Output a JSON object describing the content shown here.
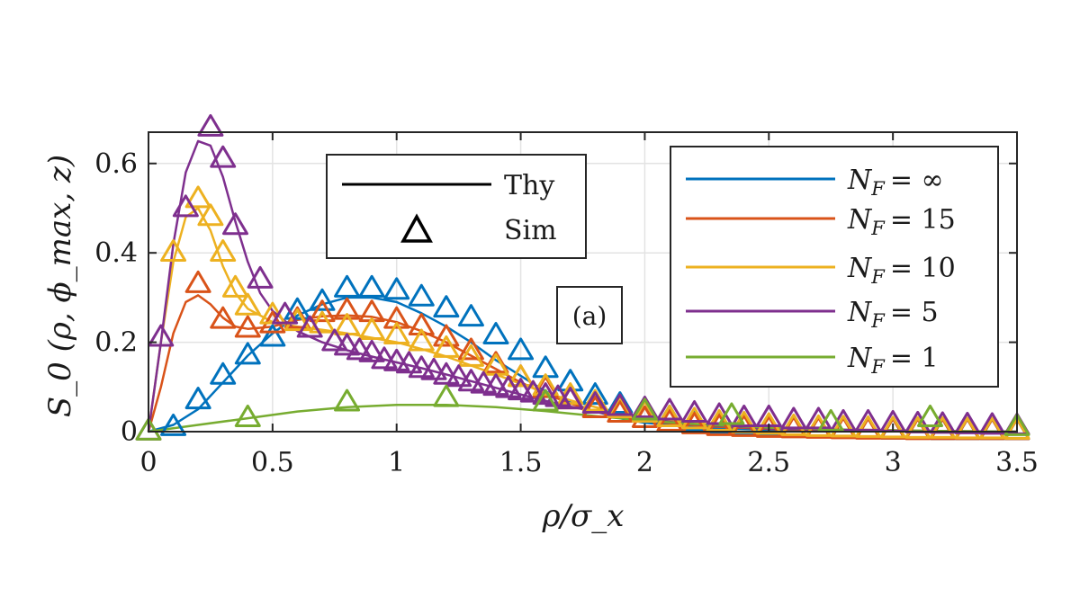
{
  "chart_data": {
    "type": "line",
    "xlabel": "ρ/σ_x",
    "ylabel": "S_0 (ρ, ϕ_max, z)",
    "xlim": [
      0,
      3.5
    ],
    "ylim": [
      0,
      0.67
    ],
    "xticks": [
      0,
      0.5,
      1,
      1.5,
      2,
      2.5,
      3,
      3.5
    ],
    "xtick_labels": [
      "0",
      "0.5",
      "1",
      "1.5",
      "2",
      "2.5",
      "3",
      "3.5"
    ],
    "yticks": [
      0,
      0.2,
      0.4,
      0.6
    ],
    "ytick_labels": [
      "0",
      "0.2",
      "0.4",
      "0.6"
    ],
    "grid": true,
    "panel_label": "(a)",
    "style_legend": {
      "placement": "upper-center",
      "entries": [
        {
          "label": "Thy",
          "style": "line"
        },
        {
          "label": "Sim",
          "style": "triangle"
        }
      ]
    },
    "legend": {
      "placement": "top-right"
    },
    "series": [
      {
        "name": "N_F = ∞",
        "label_prefix": "N",
        "label_sub": "F",
        "label_value": "= ∞",
        "color": "#0072BD",
        "x": [
          0,
          0.1,
          0.2,
          0.3,
          0.4,
          0.5,
          0.6,
          0.7,
          0.8,
          0.9,
          1.0,
          1.1,
          1.2,
          1.3,
          1.4,
          1.5,
          1.6,
          1.7,
          1.8,
          1.9,
          2.0,
          2.25,
          2.5,
          2.75,
          3.0,
          3.25,
          3.5
        ],
        "y": [
          0,
          0.015,
          0.05,
          0.11,
          0.17,
          0.22,
          0.26,
          0.285,
          0.3,
          0.3,
          0.29,
          0.265,
          0.235,
          0.2,
          0.16,
          0.125,
          0.09,
          0.065,
          0.045,
          0.03,
          0.02,
          0.008,
          0.004,
          0.002,
          0.001,
          0.0,
          0.0
        ],
        "sim_x": [
          0.1,
          0.2,
          0.3,
          0.4,
          0.5,
          0.6,
          0.7,
          0.8,
          0.9,
          1.0,
          1.1,
          1.2,
          1.3,
          1.4,
          1.5,
          1.6,
          1.7,
          1.8,
          1.9,
          2.0,
          2.1,
          2.2,
          2.3,
          2.4,
          2.5,
          2.6,
          2.7,
          2.8,
          2.9,
          3.0,
          3.1,
          3.2,
          3.3,
          3.4,
          3.5
        ],
        "sim_y": [
          0.01,
          0.07,
          0.125,
          0.17,
          0.21,
          0.27,
          0.29,
          0.32,
          0.32,
          0.315,
          0.3,
          0.275,
          0.255,
          0.215,
          0.18,
          0.14,
          0.11,
          0.08,
          0.06,
          0.04,
          0.03,
          0.02,
          0.015,
          0.01,
          0.008,
          0.006,
          0.005,
          0.004,
          0.003,
          0.002,
          0.002,
          0.001,
          0.001,
          0.001,
          0.001
        ]
      },
      {
        "name": "N_F = 15",
        "label_prefix": "N",
        "label_sub": "F",
        "label_value": "= 15",
        "color": "#D95319",
        "x": [
          0,
          0.05,
          0.1,
          0.15,
          0.2,
          0.25,
          0.3,
          0.35,
          0.4,
          0.5,
          0.6,
          0.7,
          0.8,
          0.9,
          1.0,
          1.1,
          1.2,
          1.3,
          1.4,
          1.5,
          1.6,
          1.7,
          1.8,
          1.9,
          2.0,
          2.25,
          2.5,
          2.75,
          3.0,
          3.25,
          3.5
        ],
        "y": [
          0,
          0.1,
          0.22,
          0.29,
          0.305,
          0.285,
          0.255,
          0.235,
          0.23,
          0.235,
          0.25,
          0.258,
          0.26,
          0.257,
          0.245,
          0.225,
          0.2,
          0.17,
          0.14,
          0.11,
          0.085,
          0.063,
          0.045,
          0.033,
          0.024,
          0.012,
          0.006,
          0.003,
          0.001,
          0.0,
          0.0
        ],
        "sim_x": [
          0.2,
          0.3,
          0.4,
          0.5,
          0.6,
          0.7,
          0.8,
          0.9,
          1.0,
          1.1,
          1.2,
          1.3,
          1.4,
          1.5,
          1.6,
          1.7,
          1.8,
          1.9,
          2.0,
          2.1,
          2.2,
          2.3,
          2.4,
          2.5,
          2.6,
          2.7,
          2.8,
          2.9,
          3.0,
          3.1,
          3.2,
          3.3,
          3.4,
          3.5
        ],
        "sim_y": [
          0.33,
          0.25,
          0.23,
          0.24,
          0.25,
          0.265,
          0.27,
          0.265,
          0.25,
          0.235,
          0.21,
          0.18,
          0.15,
          0.12,
          0.095,
          0.07,
          0.05,
          0.04,
          0.028,
          0.02,
          0.014,
          0.01,
          0.008,
          0.006,
          0.005,
          0.004,
          0.003,
          0.002,
          0.002,
          0.001,
          0.001,
          0.001,
          0.001,
          0.001
        ]
      },
      {
        "name": "N_F = 10",
        "label_prefix": "N",
        "label_sub": "F",
        "label_value": "= 10",
        "color": "#EDB120",
        "x": [
          0,
          0.05,
          0.1,
          0.15,
          0.2,
          0.25,
          0.3,
          0.35,
          0.4,
          0.5,
          0.6,
          0.7,
          0.8,
          0.9,
          1.0,
          1.1,
          1.2,
          1.3,
          1.4,
          1.5,
          1.6,
          1.7,
          1.8,
          1.9,
          2.0,
          2.25,
          2.5,
          2.75,
          3.0,
          3.25,
          3.5
        ],
        "y": [
          0,
          0.2,
          0.38,
          0.48,
          0.5,
          0.45,
          0.37,
          0.31,
          0.275,
          0.245,
          0.235,
          0.228,
          0.22,
          0.21,
          0.2,
          0.185,
          0.168,
          0.148,
          0.128,
          0.107,
          0.088,
          0.07,
          0.055,
          0.042,
          0.032,
          0.017,
          0.009,
          0.005,
          0.003,
          0.001,
          0.0
        ],
        "sim_x": [
          0.1,
          0.2,
          0.25,
          0.3,
          0.35,
          0.4,
          0.5,
          0.6,
          0.7,
          0.8,
          0.9,
          1.0,
          1.1,
          1.2,
          1.3,
          1.4,
          1.5,
          1.6,
          1.7,
          1.8,
          1.9,
          2.0,
          2.1,
          2.2,
          2.3,
          2.4,
          2.5,
          2.6,
          2.7,
          2.8,
          2.9,
          3.0,
          3.1,
          3.2,
          3.3,
          3.4,
          3.5
        ],
        "sim_y": [
          0.4,
          0.52,
          0.48,
          0.4,
          0.32,
          0.28,
          0.26,
          0.245,
          0.24,
          0.235,
          0.225,
          0.215,
          0.2,
          0.185,
          0.165,
          0.145,
          0.12,
          0.1,
          0.08,
          0.065,
          0.05,
          0.04,
          0.03,
          0.025,
          0.02,
          0.016,
          0.013,
          0.01,
          0.008,
          0.007,
          0.006,
          0.005,
          0.004,
          0.004,
          0.003,
          0.003,
          0.002
        ]
      },
      {
        "name": "N_F = 5",
        "label_prefix": "N",
        "label_sub": "F",
        "label_value": "= 5",
        "color": "#7E2F8E",
        "x": [
          0,
          0.05,
          0.1,
          0.15,
          0.2,
          0.25,
          0.3,
          0.35,
          0.4,
          0.45,
          0.5,
          0.6,
          0.7,
          0.8,
          0.9,
          1.0,
          1.1,
          1.2,
          1.3,
          1.4,
          1.5,
          1.6,
          1.7,
          1.8,
          1.9,
          2.0,
          2.25,
          2.5,
          2.75,
          3.0,
          3.25,
          3.5
        ],
        "y": [
          0,
          0.2,
          0.42,
          0.58,
          0.65,
          0.64,
          0.57,
          0.47,
          0.38,
          0.31,
          0.27,
          0.225,
          0.2,
          0.182,
          0.168,
          0.155,
          0.142,
          0.128,
          0.113,
          0.098,
          0.083,
          0.069,
          0.056,
          0.045,
          0.035,
          0.027,
          0.014,
          0.007,
          0.004,
          0.002,
          0.001,
          0.0
        ],
        "sim_x": [
          0,
          0.05,
          0.15,
          0.25,
          0.3,
          0.35,
          0.45,
          0.55,
          0.65,
          0.75,
          0.8,
          0.85,
          0.9,
          0.95,
          1.0,
          1.05,
          1.1,
          1.15,
          1.2,
          1.25,
          1.3,
          1.35,
          1.4,
          1.45,
          1.5,
          1.55,
          1.6,
          1.65,
          1.7,
          1.8,
          1.9,
          2.0,
          2.1,
          2.2,
          2.3,
          2.4,
          2.5,
          2.6,
          2.7,
          2.8,
          2.9,
          3.0,
          3.1,
          3.2,
          3.3,
          3.4,
          3.5
        ],
        "sim_y": [
          0.0,
          0.21,
          0.5,
          0.68,
          0.61,
          0.46,
          0.34,
          0.26,
          0.23,
          0.2,
          0.19,
          0.18,
          0.175,
          0.16,
          0.155,
          0.15,
          0.14,
          0.135,
          0.125,
          0.12,
          0.11,
          0.105,
          0.1,
          0.095,
          0.09,
          0.085,
          0.08,
          0.075,
          0.07,
          0.06,
          0.055,
          0.05,
          0.045,
          0.04,
          0.035,
          0.03,
          0.03,
          0.025,
          0.025,
          0.02,
          0.02,
          0.018,
          0.016,
          0.015,
          0.014,
          0.013,
          0.012
        ]
      },
      {
        "name": "N_F = 1",
        "label_prefix": "N",
        "label_sub": "F",
        "label_value": "= 1",
        "color": "#77AC30",
        "x": [
          0,
          0.2,
          0.4,
          0.6,
          0.8,
          1.0,
          1.2,
          1.4,
          1.6,
          1.8,
          2.0,
          2.25,
          2.5,
          2.75,
          3.0,
          3.25,
          3.5
        ],
        "y": [
          0,
          0.015,
          0.03,
          0.045,
          0.055,
          0.06,
          0.06,
          0.055,
          0.046,
          0.035,
          0.025,
          0.015,
          0.009,
          0.005,
          0.003,
          0.001,
          0.0
        ],
        "sim_x": [
          0,
          0.4,
          0.8,
          1.2,
          1.6,
          2.0,
          2.35,
          2.75,
          3.15,
          3.5
        ],
        "sim_y": [
          0.0,
          0.03,
          0.065,
          0.075,
          0.065,
          0.045,
          0.035,
          0.02,
          0.03,
          0.01
        ]
      }
    ]
  }
}
